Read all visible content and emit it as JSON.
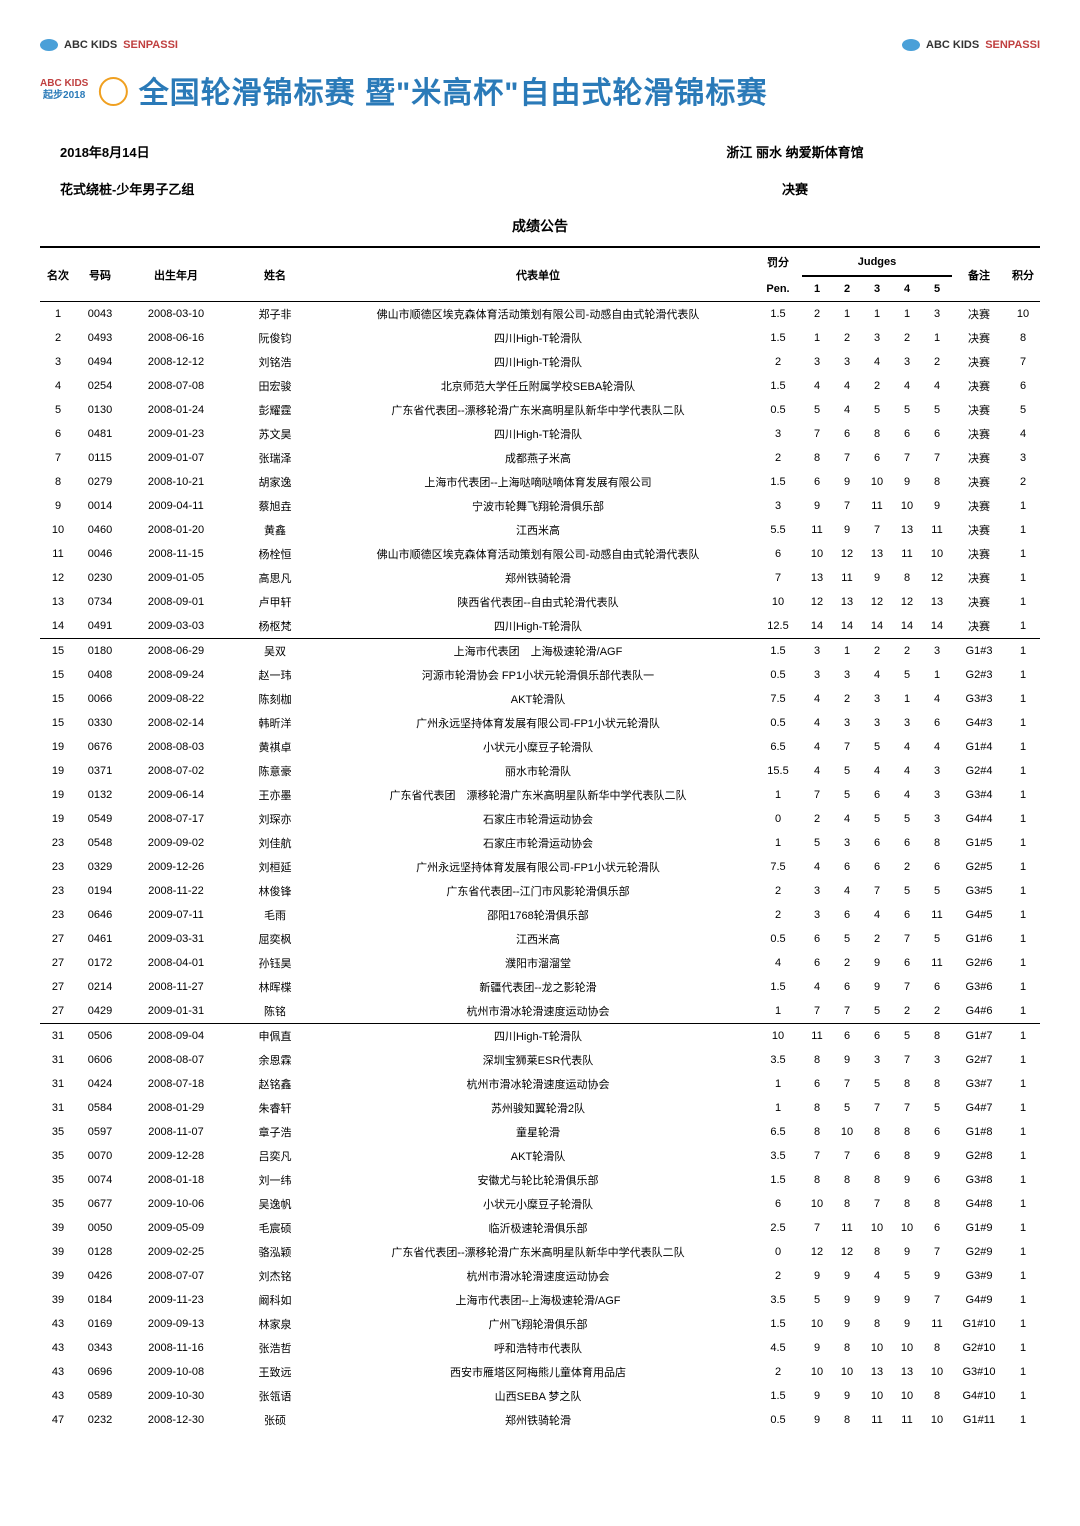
{
  "logos": {
    "abc": "ABC KIDS",
    "sen": "SENPASSI"
  },
  "banner": {
    "left1": "ABC KIDS",
    "left2": "起步2018",
    "title_pre": "全国轮滑锦标赛",
    "title_mid": "暨\"米高杯\"自由式轮滑锦标赛"
  },
  "meta": {
    "date": "2018年8月14日",
    "venue": "浙江 丽水 纳爱斯体育馆",
    "event": "花式绕桩-少年男子乙组",
    "stage": "决赛"
  },
  "notice": "成绩公告",
  "headers": {
    "rank": "名次",
    "bib": "号码",
    "dob": "出生年月",
    "name": "姓名",
    "team": "代表单位",
    "pen_top": "罚分",
    "pen_bot": "Pen.",
    "judges": "Judges",
    "j": [
      "1",
      "2",
      "3",
      "4",
      "5"
    ],
    "remark": "备注",
    "pts": "积分"
  },
  "rows": [
    {
      "r": "1",
      "b": "0043",
      "d": "2008-03-10",
      "n": "郑子非",
      "t": "佛山市顺德区埃克森体育活动策划有限公司-动感自由式轮滑代表队",
      "p": "1.5",
      "j": [
        "2",
        "1",
        "1",
        "1",
        "3"
      ],
      "rm": "决赛",
      "pt": "10"
    },
    {
      "r": "2",
      "b": "0493",
      "d": "2008-06-16",
      "n": "阮俊钧",
      "t": "四川High-T轮滑队",
      "p": "1.5",
      "j": [
        "1",
        "2",
        "3",
        "2",
        "1"
      ],
      "rm": "决赛",
      "pt": "8"
    },
    {
      "r": "3",
      "b": "0494",
      "d": "2008-12-12",
      "n": "刘铭浩",
      "t": "四川High-T轮滑队",
      "p": "2",
      "j": [
        "3",
        "3",
        "4",
        "3",
        "2"
      ],
      "rm": "决赛",
      "pt": "7"
    },
    {
      "r": "4",
      "b": "0254",
      "d": "2008-07-08",
      "n": "田宏骏",
      "t": "北京师范大学任丘附属学校SEBA轮滑队",
      "p": "1.5",
      "j": [
        "4",
        "4",
        "2",
        "4",
        "4"
      ],
      "rm": "决赛",
      "pt": "6"
    },
    {
      "r": "5",
      "b": "0130",
      "d": "2008-01-24",
      "n": "彭耀霆",
      "t": "广东省代表团--漂移轮滑广东米高明星队新华中学代表队二队",
      "p": "0.5",
      "j": [
        "5",
        "4",
        "5",
        "5",
        "5"
      ],
      "rm": "决赛",
      "pt": "5"
    },
    {
      "r": "6",
      "b": "0481",
      "d": "2009-01-23",
      "n": "苏文昊",
      "t": "四川High-T轮滑队",
      "p": "3",
      "j": [
        "7",
        "6",
        "8",
        "6",
        "6"
      ],
      "rm": "决赛",
      "pt": "4"
    },
    {
      "r": "7",
      "b": "0115",
      "d": "2009-01-07",
      "n": "张瑞泽",
      "t": "成都燕子米高",
      "p": "2",
      "j": [
        "8",
        "7",
        "6",
        "7",
        "7"
      ],
      "rm": "决赛",
      "pt": "3"
    },
    {
      "r": "8",
      "b": "0279",
      "d": "2008-10-21",
      "n": "胡家逸",
      "t": "上海市代表团--上海哒嘀哒嘀体育发展有限公司",
      "p": "1.5",
      "j": [
        "6",
        "9",
        "10",
        "9",
        "8"
      ],
      "rm": "决赛",
      "pt": "2"
    },
    {
      "r": "9",
      "b": "0014",
      "d": "2009-04-11",
      "n": "蔡旭垚",
      "t": "宁波市轮舞飞翔轮滑俱乐部",
      "p": "3",
      "j": [
        "9",
        "7",
        "11",
        "10",
        "9"
      ],
      "rm": "决赛",
      "pt": "1"
    },
    {
      "r": "10",
      "b": "0460",
      "d": "2008-01-20",
      "n": "黄鑫",
      "t": "江西米高",
      "p": "5.5",
      "j": [
        "11",
        "9",
        "7",
        "13",
        "11"
      ],
      "rm": "决赛",
      "pt": "1"
    },
    {
      "r": "11",
      "b": "0046",
      "d": "2008-11-15",
      "n": "杨栓恒",
      "t": "佛山市顺德区埃克森体育活动策划有限公司-动感自由式轮滑代表队",
      "p": "6",
      "j": [
        "10",
        "12",
        "13",
        "11",
        "10"
      ],
      "rm": "决赛",
      "pt": "1"
    },
    {
      "r": "12",
      "b": "0230",
      "d": "2009-01-05",
      "n": "高思凡",
      "t": "郑州铁骑轮滑",
      "p": "7",
      "j": [
        "13",
        "11",
        "9",
        "8",
        "12"
      ],
      "rm": "决赛",
      "pt": "1"
    },
    {
      "r": "13",
      "b": "0734",
      "d": "2008-09-01",
      "n": "卢甲轩",
      "t": "陕西省代表团--自由式轮滑代表队",
      "p": "10",
      "j": [
        "12",
        "13",
        "12",
        "12",
        "13"
      ],
      "rm": "决赛",
      "pt": "1"
    },
    {
      "r": "14",
      "b": "0491",
      "d": "2009-03-03",
      "n": "杨枢梵",
      "t": "四川High-T轮滑队",
      "p": "12.5",
      "j": [
        "14",
        "14",
        "14",
        "14",
        "14"
      ],
      "rm": "决赛",
      "pt": "1",
      "end": true
    },
    {
      "r": "15",
      "b": "0180",
      "d": "2008-06-29",
      "n": "吴双",
      "t": "上海市代表团　上海极速轮滑/AGF",
      "p": "1.5",
      "j": [
        "3",
        "1",
        "2",
        "2",
        "3"
      ],
      "rm": "G1#3",
      "pt": "1"
    },
    {
      "r": "15",
      "b": "0408",
      "d": "2008-09-24",
      "n": "赵一玮",
      "t": "河源市轮滑协会 FP1小状元轮滑俱乐部代表队一",
      "p": "0.5",
      "j": [
        "3",
        "3",
        "4",
        "5",
        "1"
      ],
      "rm": "G2#3",
      "pt": "1"
    },
    {
      "r": "15",
      "b": "0066",
      "d": "2009-08-22",
      "n": "陈刻枷",
      "t": "AKT轮滑队",
      "p": "7.5",
      "j": [
        "4",
        "2",
        "3",
        "1",
        "4"
      ],
      "rm": "G3#3",
      "pt": "1"
    },
    {
      "r": "15",
      "b": "0330",
      "d": "2008-02-14",
      "n": "韩昕洋",
      "t": "广州永远坚持体育发展有限公司-FP1小状元轮滑队",
      "p": "0.5",
      "j": [
        "4",
        "3",
        "3",
        "3",
        "6"
      ],
      "rm": "G4#3",
      "pt": "1"
    },
    {
      "r": "19",
      "b": "0676",
      "d": "2008-08-03",
      "n": "黄祺卓",
      "t": "小状元小糜豆子轮滑队",
      "p": "6.5",
      "j": [
        "4",
        "7",
        "5",
        "4",
        "4"
      ],
      "rm": "G1#4",
      "pt": "1"
    },
    {
      "r": "19",
      "b": "0371",
      "d": "2008-07-02",
      "n": "陈意豪",
      "t": "丽水市轮滑队",
      "p": "15.5",
      "j": [
        "4",
        "5",
        "4",
        "4",
        "3"
      ],
      "rm": "G2#4",
      "pt": "1"
    },
    {
      "r": "19",
      "b": "0132",
      "d": "2009-06-14",
      "n": "王亦墨",
      "t": "广东省代表团　漂移轮滑广东米高明星队新华中学代表队二队",
      "p": "1",
      "j": [
        "7",
        "5",
        "6",
        "4",
        "3"
      ],
      "rm": "G3#4",
      "pt": "1"
    },
    {
      "r": "19",
      "b": "0549",
      "d": "2008-07-17",
      "n": "刘琛亦",
      "t": "石家庄市轮滑运动协会",
      "p": "0",
      "j": [
        "2",
        "4",
        "5",
        "5",
        "3"
      ],
      "rm": "G4#4",
      "pt": "1"
    },
    {
      "r": "23",
      "b": "0548",
      "d": "2009-09-02",
      "n": "刘佳航",
      "t": "石家庄市轮滑运动协会",
      "p": "1",
      "j": [
        "5",
        "3",
        "6",
        "6",
        "8"
      ],
      "rm": "G1#5",
      "pt": "1"
    },
    {
      "r": "23",
      "b": "0329",
      "d": "2009-12-26",
      "n": "刘桓延",
      "t": "广州永远坚持体育发展有限公司-FP1小状元轮滑队",
      "p": "7.5",
      "j": [
        "4",
        "6",
        "6",
        "2",
        "6"
      ],
      "rm": "G2#5",
      "pt": "1"
    },
    {
      "r": "23",
      "b": "0194",
      "d": "2008-11-22",
      "n": "林俊锋",
      "t": "广东省代表团--江门市风影轮滑俱乐部",
      "p": "2",
      "j": [
        "3",
        "4",
        "7",
        "5",
        "5"
      ],
      "rm": "G3#5",
      "pt": "1"
    },
    {
      "r": "23",
      "b": "0646",
      "d": "2009-07-11",
      "n": "毛雨",
      "t": "邵阳1768轮滑俱乐部",
      "p": "2",
      "j": [
        "3",
        "6",
        "4",
        "6",
        "11"
      ],
      "rm": "G4#5",
      "pt": "1"
    },
    {
      "r": "27",
      "b": "0461",
      "d": "2009-03-31",
      "n": "屈奕枫",
      "t": "江西米高",
      "p": "0.5",
      "j": [
        "6",
        "5",
        "2",
        "7",
        "5"
      ],
      "rm": "G1#6",
      "pt": "1"
    },
    {
      "r": "27",
      "b": "0172",
      "d": "2008-04-01",
      "n": "孙钰昊",
      "t": "濮阳市溜溜堂",
      "p": "4",
      "j": [
        "6",
        "2",
        "9",
        "6",
        "11"
      ],
      "rm": "G2#6",
      "pt": "1"
    },
    {
      "r": "27",
      "b": "0214",
      "d": "2008-11-27",
      "n": "林晖楪",
      "t": "新疆代表团--龙之影轮滑",
      "p": "1.5",
      "j": [
        "4",
        "6",
        "9",
        "7",
        "6"
      ],
      "rm": "G3#6",
      "pt": "1"
    },
    {
      "r": "27",
      "b": "0429",
      "d": "2009-01-31",
      "n": "陈铭",
      "t": "杭州市滑冰轮滑速度运动协会",
      "p": "1",
      "j": [
        "7",
        "7",
        "5",
        "2",
        "2"
      ],
      "rm": "G4#6",
      "pt": "1",
      "end": true
    },
    {
      "r": "31",
      "b": "0506",
      "d": "2008-09-04",
      "n": "申佩直",
      "t": "四川High-T轮滑队",
      "p": "10",
      "j": [
        "11",
        "6",
        "6",
        "5",
        "8"
      ],
      "rm": "G1#7",
      "pt": "1"
    },
    {
      "r": "31",
      "b": "0606",
      "d": "2008-08-07",
      "n": "余恩霖",
      "t": "深圳宝狮莱ESR代表队",
      "p": "3.5",
      "j": [
        "8",
        "9",
        "3",
        "7",
        "3"
      ],
      "rm": "G2#7",
      "pt": "1"
    },
    {
      "r": "31",
      "b": "0424",
      "d": "2008-07-18",
      "n": "赵铭鑫",
      "t": "杭州市滑冰轮滑速度运动协会",
      "p": "1",
      "j": [
        "6",
        "7",
        "5",
        "8",
        "8"
      ],
      "rm": "G3#7",
      "pt": "1"
    },
    {
      "r": "31",
      "b": "0584",
      "d": "2008-01-29",
      "n": "朱睿轩",
      "t": "苏州骏知翼轮滑2队",
      "p": "1",
      "j": [
        "8",
        "5",
        "7",
        "7",
        "5"
      ],
      "rm": "G4#7",
      "pt": "1"
    },
    {
      "r": "35",
      "b": "0597",
      "d": "2008-11-07",
      "n": "章子浩",
      "t": "童星轮滑",
      "p": "6.5",
      "j": [
        "8",
        "10",
        "8",
        "8",
        "6"
      ],
      "rm": "G1#8",
      "pt": "1"
    },
    {
      "r": "35",
      "b": "0070",
      "d": "2009-12-28",
      "n": "吕奕凡",
      "t": "AKT轮滑队",
      "p": "3.5",
      "j": [
        "7",
        "7",
        "6",
        "8",
        "9"
      ],
      "rm": "G2#8",
      "pt": "1"
    },
    {
      "r": "35",
      "b": "0074",
      "d": "2008-01-18",
      "n": "刘一纬",
      "t": "安徽尤与轮比轮滑俱乐部",
      "p": "1.5",
      "j": [
        "8",
        "8",
        "8",
        "9",
        "6"
      ],
      "rm": "G3#8",
      "pt": "1"
    },
    {
      "r": "35",
      "b": "0677",
      "d": "2009-10-06",
      "n": "吴逸帆",
      "t": "小状元小糜豆子轮滑队",
      "p": "6",
      "j": [
        "10",
        "8",
        "7",
        "8",
        "8"
      ],
      "rm": "G4#8",
      "pt": "1"
    },
    {
      "r": "39",
      "b": "0050",
      "d": "2009-05-09",
      "n": "毛宸硕",
      "t": "临沂极速轮滑俱乐部",
      "p": "2.5",
      "j": [
        "7",
        "11",
        "10",
        "10",
        "6"
      ],
      "rm": "G1#9",
      "pt": "1"
    },
    {
      "r": "39",
      "b": "0128",
      "d": "2009-02-25",
      "n": "骆泓颖",
      "t": "广东省代表团--漂移轮滑广东米高明星队新华中学代表队二队",
      "p": "0",
      "j": [
        "12",
        "12",
        "8",
        "9",
        "7"
      ],
      "rm": "G2#9",
      "pt": "1"
    },
    {
      "r": "39",
      "b": "0426",
      "d": "2008-07-07",
      "n": "刘杰铭",
      "t": "杭州市滑冰轮滑速度运动协会",
      "p": "2",
      "j": [
        "9",
        "9",
        "4",
        "5",
        "9"
      ],
      "rm": "G3#9",
      "pt": "1"
    },
    {
      "r": "39",
      "b": "0184",
      "d": "2009-11-23",
      "n": "阚科如",
      "t": "上海市代表团--上海极速轮滑/AGF",
      "p": "3.5",
      "j": [
        "5",
        "9",
        "9",
        "9",
        "7"
      ],
      "rm": "G4#9",
      "pt": "1"
    },
    {
      "r": "43",
      "b": "0169",
      "d": "2009-09-13",
      "n": "林家泉",
      "t": "广州飞翔轮滑俱乐部",
      "p": "1.5",
      "j": [
        "10",
        "9",
        "8",
        "9",
        "11"
      ],
      "rm": "G1#10",
      "pt": "1"
    },
    {
      "r": "43",
      "b": "0343",
      "d": "2008-11-16",
      "n": "张浩哲",
      "t": "呼和浩特市代表队",
      "p": "4.5",
      "j": [
        "9",
        "8",
        "10",
        "10",
        "8"
      ],
      "rm": "G2#10",
      "pt": "1"
    },
    {
      "r": "43",
      "b": "0696",
      "d": "2009-10-08",
      "n": "王致远",
      "t": "西安市雁塔区阿梅熊儿童体育用品店",
      "p": "2",
      "j": [
        "10",
        "10",
        "13",
        "13",
        "10"
      ],
      "rm": "G3#10",
      "pt": "1"
    },
    {
      "r": "43",
      "b": "0589",
      "d": "2009-10-30",
      "n": "张瓴语",
      "t": "山西SEBA 梦之队",
      "p": "1.5",
      "j": [
        "9",
        "9",
        "10",
        "10",
        "8"
      ],
      "rm": "G4#10",
      "pt": "1"
    },
    {
      "r": "47",
      "b": "0232",
      "d": "2008-12-30",
      "n": "张硕",
      "t": "郑州铁骑轮滑",
      "p": "0.5",
      "j": [
        "9",
        "8",
        "11",
        "11",
        "10"
      ],
      "rm": "G1#11",
      "pt": "1"
    }
  ]
}
